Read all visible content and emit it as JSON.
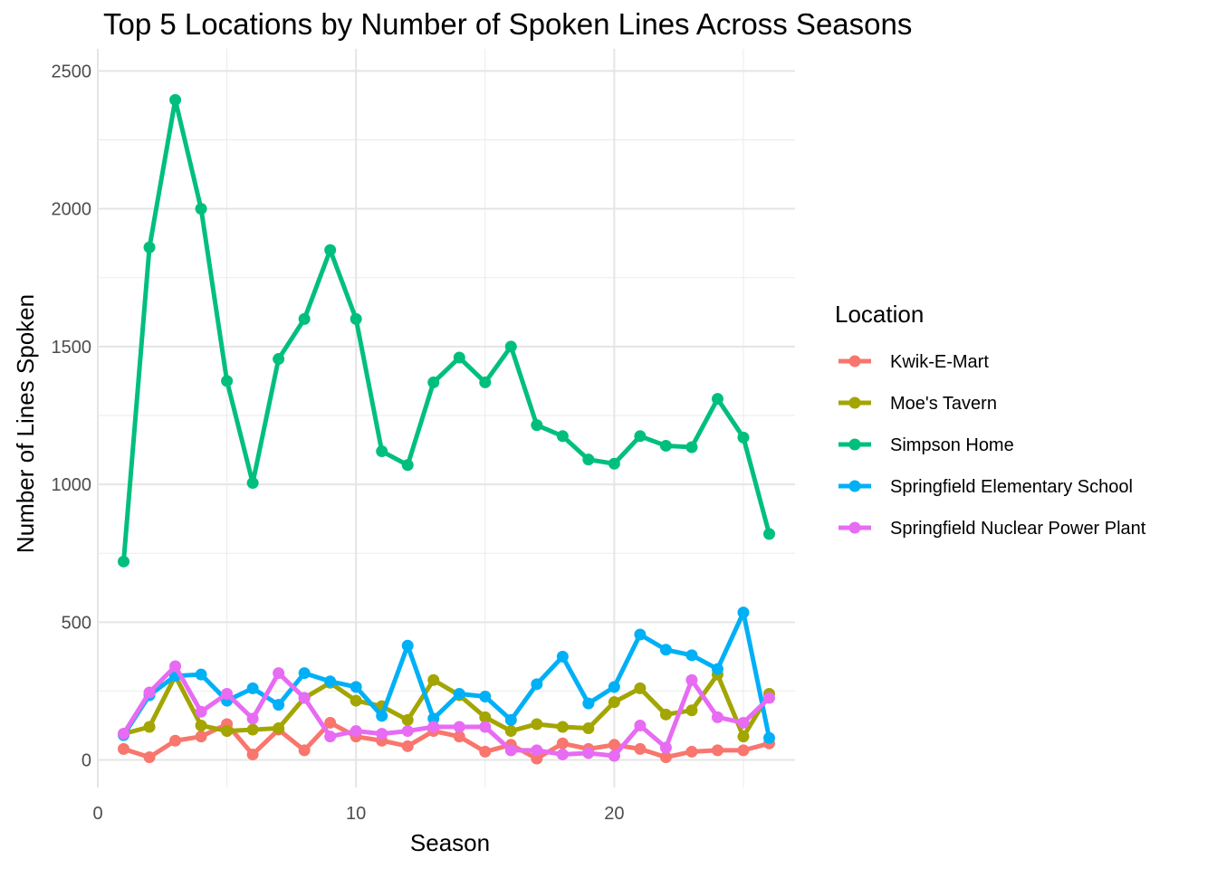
{
  "chart_data": {
    "type": "line",
    "title": "Top 5 Locations by Number of Spoken Lines Across Seasons",
    "xlabel": "Season",
    "ylabel": "Number of Lines Spoken",
    "xlim": [
      0,
      27
    ],
    "ylim": [
      -100,
      2580
    ],
    "x_ticks": [
      0,
      10,
      20
    ],
    "y_ticks": [
      0,
      500,
      1000,
      1500,
      2000,
      2500
    ],
    "x_tick_labels": [
      "0",
      "10",
      "20"
    ],
    "y_tick_labels": [
      "0",
      "500",
      "1000",
      "1500",
      "2000",
      "2500"
    ],
    "grid": true,
    "legend_position": "right",
    "legend_title": "Location",
    "x": [
      1,
      2,
      3,
      4,
      5,
      6,
      7,
      8,
      9,
      10,
      11,
      12,
      13,
      14,
      15,
      16,
      17,
      18,
      19,
      20,
      21,
      22,
      23,
      24,
      25,
      26
    ],
    "series": [
      {
        "name": "Kwik-E-Mart",
        "color": "#F8766D",
        "values": [
          40,
          10,
          70,
          85,
          130,
          20,
          110,
          35,
          135,
          85,
          70,
          50,
          105,
          85,
          30,
          55,
          5,
          60,
          40,
          55,
          40,
          10,
          30,
          35,
          35,
          60
        ]
      },
      {
        "name": "Moe's Tavern",
        "color": "#A3A500",
        "values": [
          95,
          120,
          305,
          125,
          105,
          110,
          115,
          225,
          280,
          215,
          195,
          145,
          290,
          235,
          155,
          105,
          130,
          120,
          115,
          210,
          260,
          165,
          180,
          310,
          85,
          240
        ]
      },
      {
        "name": "Simpson Home",
        "color": "#00BF7D",
        "values": [
          720,
          1860,
          2395,
          2000,
          1375,
          1005,
          1455,
          1600,
          1850,
          1600,
          1120,
          1070,
          1370,
          1460,
          1370,
          1500,
          1215,
          1175,
          1090,
          1075,
          1175,
          1140,
          1135,
          1310,
          1170,
          820
        ]
      },
      {
        "name": "Springfield Elementary School",
        "color": "#00B0F6",
        "values": [
          90,
          235,
          305,
          310,
          215,
          260,
          200,
          315,
          285,
          265,
          160,
          415,
          150,
          240,
          230,
          145,
          275,
          375,
          205,
          265,
          455,
          400,
          380,
          330,
          535,
          80
        ]
      },
      {
        "name": "Springfield Nuclear Power Plant",
        "color": "#E76BF3",
        "values": [
          95,
          245,
          340,
          175,
          240,
          150,
          315,
          225,
          85,
          105,
          95,
          105,
          120,
          120,
          120,
          35,
          35,
          20,
          25,
          15,
          125,
          45,
          290,
          155,
          135,
          225
        ]
      }
    ]
  }
}
